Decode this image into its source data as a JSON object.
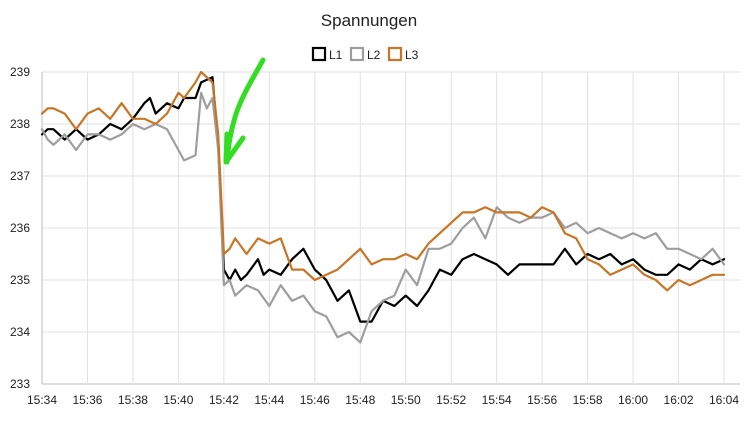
{
  "chart_data": {
    "type": "line",
    "title": "Spannungen",
    "xlabel": "",
    "ylabel": "",
    "ylim": [
      233,
      239
    ],
    "xlim": [
      "15:34",
      "16:04"
    ],
    "y_ticks": [
      "233",
      "234",
      "235",
      "236",
      "237",
      "238",
      "239"
    ],
    "x_ticks": [
      "15:34",
      "15:36",
      "15:38",
      "15:40",
      "15:42",
      "15:44",
      "15:46",
      "15:48",
      "15:50",
      "15:52",
      "15:54",
      "15:56",
      "15:58",
      "16:00",
      "16:02",
      "16:04"
    ],
    "grid": true,
    "legend_position": "top-center",
    "series": [
      {
        "name": "L1",
        "color": "#000000",
        "points": [
          [
            "15:34:00",
            237.8
          ],
          [
            "15:34:15",
            237.9
          ],
          [
            "15:34:30",
            237.9
          ],
          [
            "15:35:00",
            237.7
          ],
          [
            "15:35:30",
            237.9
          ],
          [
            "15:36:00",
            237.7
          ],
          [
            "15:36:30",
            237.8
          ],
          [
            "15:37:00",
            238.0
          ],
          [
            "15:37:30",
            237.9
          ],
          [
            "15:38:00",
            238.1
          ],
          [
            "15:38:30",
            238.4
          ],
          [
            "15:38:45",
            238.5
          ],
          [
            "15:39:00",
            238.2
          ],
          [
            "15:39:30",
            238.4
          ],
          [
            "15:40:00",
            238.3
          ],
          [
            "15:40:15",
            238.5
          ],
          [
            "15:40:45",
            238.5
          ],
          [
            "15:41:00",
            238.8
          ],
          [
            "15:41:30",
            238.9
          ],
          [
            "15:41:45",
            237.6
          ],
          [
            "15:42:00",
            235.2
          ],
          [
            "15:42:15",
            235.0
          ],
          [
            "15:42:30",
            235.2
          ],
          [
            "15:42:45",
            235.0
          ],
          [
            "15:43:00",
            235.1
          ],
          [
            "15:43:30",
            235.4
          ],
          [
            "15:43:45",
            235.1
          ],
          [
            "15:44:00",
            235.2
          ],
          [
            "15:44:30",
            235.1
          ],
          [
            "15:45:00",
            235.4
          ],
          [
            "15:45:30",
            235.6
          ],
          [
            "15:46:00",
            235.2
          ],
          [
            "15:46:30",
            235.0
          ],
          [
            "15:47:00",
            234.6
          ],
          [
            "15:47:30",
            234.8
          ],
          [
            "15:48:00",
            234.2
          ],
          [
            "15:48:30",
            234.2
          ],
          [
            "15:49:00",
            234.6
          ],
          [
            "15:49:30",
            234.5
          ],
          [
            "15:50:00",
            234.7
          ],
          [
            "15:50:30",
            234.5
          ],
          [
            "15:51:00",
            234.8
          ],
          [
            "15:51:30",
            235.2
          ],
          [
            "15:52:00",
            235.1
          ],
          [
            "15:52:30",
            235.4
          ],
          [
            "15:53:00",
            235.5
          ],
          [
            "15:53:30",
            235.4
          ],
          [
            "15:54:00",
            235.3
          ],
          [
            "15:54:30",
            235.1
          ],
          [
            "15:55:00",
            235.3
          ],
          [
            "15:55:30",
            235.3
          ],
          [
            "15:56:00",
            235.3
          ],
          [
            "15:56:30",
            235.3
          ],
          [
            "15:57:00",
            235.6
          ],
          [
            "15:57:30",
            235.3
          ],
          [
            "15:58:00",
            235.5
          ],
          [
            "15:58:30",
            235.4
          ],
          [
            "15:59:00",
            235.5
          ],
          [
            "15:59:30",
            235.3
          ],
          [
            "16:00:00",
            235.4
          ],
          [
            "16:00:30",
            235.2
          ],
          [
            "16:01:00",
            235.1
          ],
          [
            "16:01:30",
            235.1
          ],
          [
            "16:02:00",
            235.3
          ],
          [
            "16:02:30",
            235.2
          ],
          [
            "16:03:00",
            235.4
          ],
          [
            "16:03:30",
            235.3
          ],
          [
            "16:04:00",
            235.4
          ]
        ]
      },
      {
        "name": "L2",
        "color": "#9e9e9e",
        "points": [
          [
            "15:34:00",
            237.9
          ],
          [
            "15:34:15",
            237.7
          ],
          [
            "15:34:30",
            237.6
          ],
          [
            "15:35:00",
            237.8
          ],
          [
            "15:35:30",
            237.5
          ],
          [
            "15:36:00",
            237.8
          ],
          [
            "15:36:30",
            237.8
          ],
          [
            "15:37:00",
            237.7
          ],
          [
            "15:37:30",
            237.8
          ],
          [
            "15:38:00",
            238.0
          ],
          [
            "15:38:30",
            237.9
          ],
          [
            "15:39:00",
            238.0
          ],
          [
            "15:39:30",
            237.9
          ],
          [
            "15:40:00",
            237.5
          ],
          [
            "15:40:15",
            237.3
          ],
          [
            "15:40:45",
            237.4
          ],
          [
            "15:41:00",
            238.6
          ],
          [
            "15:41:15",
            238.3
          ],
          [
            "15:41:30",
            238.5
          ],
          [
            "15:41:45",
            237.5
          ],
          [
            "15:42:00",
            234.9
          ],
          [
            "15:42:15",
            235.0
          ],
          [
            "15:42:30",
            234.7
          ],
          [
            "15:43:00",
            234.9
          ],
          [
            "15:43:30",
            234.8
          ],
          [
            "15:44:00",
            234.5
          ],
          [
            "15:44:30",
            234.9
          ],
          [
            "15:45:00",
            234.6
          ],
          [
            "15:45:30",
            234.7
          ],
          [
            "15:46:00",
            234.4
          ],
          [
            "15:46:30",
            234.3
          ],
          [
            "15:47:00",
            233.9
          ],
          [
            "15:47:30",
            234.0
          ],
          [
            "15:48:00",
            233.8
          ],
          [
            "15:48:30",
            234.4
          ],
          [
            "15:49:00",
            234.6
          ],
          [
            "15:49:30",
            234.7
          ],
          [
            "15:50:00",
            235.2
          ],
          [
            "15:50:30",
            234.9
          ],
          [
            "15:51:00",
            235.6
          ],
          [
            "15:51:30",
            235.6
          ],
          [
            "15:52:00",
            235.7
          ],
          [
            "15:52:30",
            236.0
          ],
          [
            "15:53:00",
            236.2
          ],
          [
            "15:53:30",
            235.8
          ],
          [
            "15:54:00",
            236.4
          ],
          [
            "15:54:30",
            236.2
          ],
          [
            "15:55:00",
            236.1
          ],
          [
            "15:55:30",
            236.2
          ],
          [
            "15:56:00",
            236.2
          ],
          [
            "15:56:30",
            236.3
          ],
          [
            "15:57:00",
            236.0
          ],
          [
            "15:57:30",
            236.1
          ],
          [
            "15:58:00",
            235.9
          ],
          [
            "15:58:30",
            236.0
          ],
          [
            "15:59:00",
            235.9
          ],
          [
            "15:59:30",
            235.8
          ],
          [
            "16:00:00",
            235.9
          ],
          [
            "16:00:30",
            235.8
          ],
          [
            "16:01:00",
            235.9
          ],
          [
            "16:01:30",
            235.6
          ],
          [
            "16:02:00",
            235.6
          ],
          [
            "16:02:30",
            235.5
          ],
          [
            "16:03:00",
            235.4
          ],
          [
            "16:03:30",
            235.6
          ],
          [
            "16:04:00",
            235.3
          ]
        ]
      },
      {
        "name": "L3",
        "color": "#c87526",
        "points": [
          [
            "15:34:00",
            238.2
          ],
          [
            "15:34:15",
            238.3
          ],
          [
            "15:34:30",
            238.3
          ],
          [
            "15:35:00",
            238.2
          ],
          [
            "15:35:30",
            237.9
          ],
          [
            "15:36:00",
            238.2
          ],
          [
            "15:36:30",
            238.3
          ],
          [
            "15:37:00",
            238.1
          ],
          [
            "15:37:30",
            238.4
          ],
          [
            "15:38:00",
            238.1
          ],
          [
            "15:38:30",
            238.1
          ],
          [
            "15:39:00",
            238.0
          ],
          [
            "15:39:30",
            238.2
          ],
          [
            "15:40:00",
            238.6
          ],
          [
            "15:40:15",
            238.5
          ],
          [
            "15:40:45",
            238.8
          ],
          [
            "15:41:00",
            239.0
          ],
          [
            "15:41:30",
            238.8
          ],
          [
            "15:41:45",
            237.8
          ],
          [
            "15:42:00",
            235.5
          ],
          [
            "15:42:15",
            235.6
          ],
          [
            "15:42:30",
            235.8
          ],
          [
            "15:43:00",
            235.5
          ],
          [
            "15:43:30",
            235.8
          ],
          [
            "15:44:00",
            235.7
          ],
          [
            "15:44:30",
            235.8
          ],
          [
            "15:45:00",
            235.2
          ],
          [
            "15:45:30",
            235.2
          ],
          [
            "15:46:00",
            235.0
          ],
          [
            "15:46:30",
            235.1
          ],
          [
            "15:47:00",
            235.2
          ],
          [
            "15:47:30",
            235.4
          ],
          [
            "15:48:00",
            235.6
          ],
          [
            "15:48:30",
            235.3
          ],
          [
            "15:49:00",
            235.4
          ],
          [
            "15:49:30",
            235.4
          ],
          [
            "15:50:00",
            235.5
          ],
          [
            "15:50:30",
            235.4
          ],
          [
            "15:51:00",
            235.7
          ],
          [
            "15:51:30",
            235.9
          ],
          [
            "15:52:00",
            236.1
          ],
          [
            "15:52:30",
            236.3
          ],
          [
            "15:53:00",
            236.3
          ],
          [
            "15:53:30",
            236.4
          ],
          [
            "15:54:00",
            236.3
          ],
          [
            "15:54:30",
            236.3
          ],
          [
            "15:55:00",
            236.3
          ],
          [
            "15:55:30",
            236.2
          ],
          [
            "15:56:00",
            236.4
          ],
          [
            "15:56:30",
            236.3
          ],
          [
            "15:57:00",
            235.9
          ],
          [
            "15:57:30",
            235.8
          ],
          [
            "15:58:00",
            235.4
          ],
          [
            "15:58:30",
            235.3
          ],
          [
            "15:59:00",
            235.1
          ],
          [
            "15:59:30",
            235.2
          ],
          [
            "16:00:00",
            235.3
          ],
          [
            "16:00:30",
            235.1
          ],
          [
            "16:01:00",
            235.0
          ],
          [
            "16:01:30",
            234.8
          ],
          [
            "16:02:00",
            235.0
          ],
          [
            "16:02:30",
            234.9
          ],
          [
            "16:03:00",
            235.0
          ],
          [
            "16:03:30",
            235.1
          ],
          [
            "16:04:00",
            235.1
          ]
        ]
      }
    ],
    "annotations": [
      {
        "type": "arrow",
        "shape": "hand-drawn",
        "color": "#33dd22",
        "points_to": [
          "15:42:00",
          237.3
        ]
      }
    ]
  }
}
